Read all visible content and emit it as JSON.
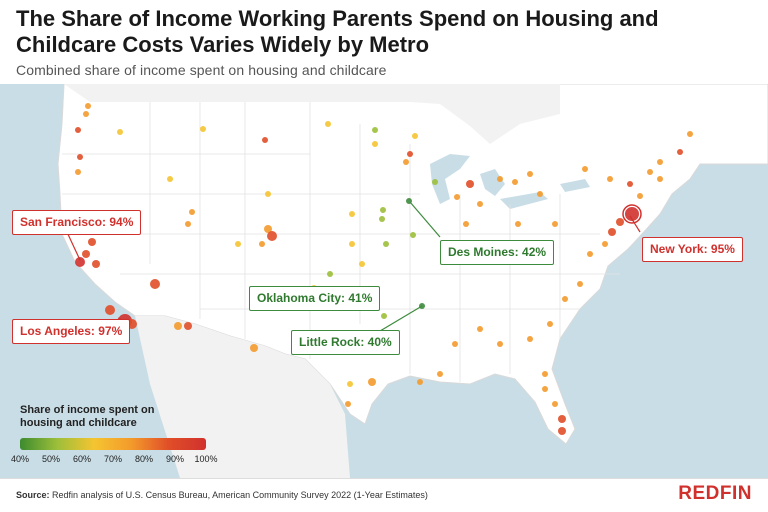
{
  "title": "The Share of Income Working Parents Spend on Housing and Childcare Costs Varies Widely by Metro",
  "subtitle": "Combined share of income spent on housing and childcare",
  "callouts": {
    "san_francisco": "San Francisco: 94%",
    "los_angeles": "Los Angeles: 97%",
    "new_york": "New York: 95%",
    "des_moines": "Des Moines: 42%",
    "oklahoma_city": "Oklahoma City: 41%",
    "little_rock": "Little Rock: 40%"
  },
  "legend": {
    "title": "Share of income spent on housing and childcare",
    "ticks": [
      "40%",
      "50%",
      "60%",
      "70%",
      "80%",
      "90%",
      "100%"
    ],
    "colors": [
      "#3d8b2f",
      "#9cbf3a",
      "#f5c431",
      "#f39a2b",
      "#e04e28",
      "#d0312d"
    ]
  },
  "source_label": "Source:",
  "source_text": "Redfin analysis of U.S. Census Bureau, American Community Survey 2022 (1-Year Estimates)",
  "logo": "REDFIN"
}
